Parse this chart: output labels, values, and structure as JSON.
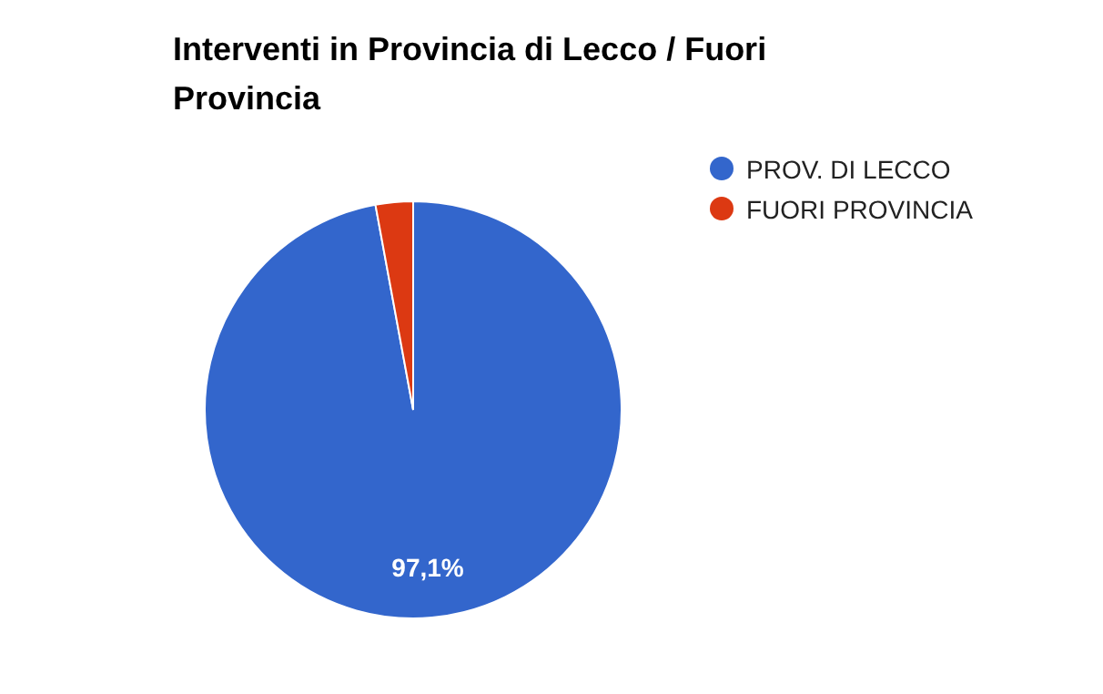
{
  "chart_data": {
    "type": "pie",
    "title": "Interventi in Provincia di Lecco / Fuori Provincia",
    "categories": [
      "PROV. DI LECCO",
      "FUORI PROVINCIA"
    ],
    "values": [
      97.1,
      2.9
    ],
    "colors": [
      "#3366cc",
      "#dc3912"
    ],
    "value_labels": [
      "97,1%",
      null
    ],
    "legend": "top right"
  }
}
